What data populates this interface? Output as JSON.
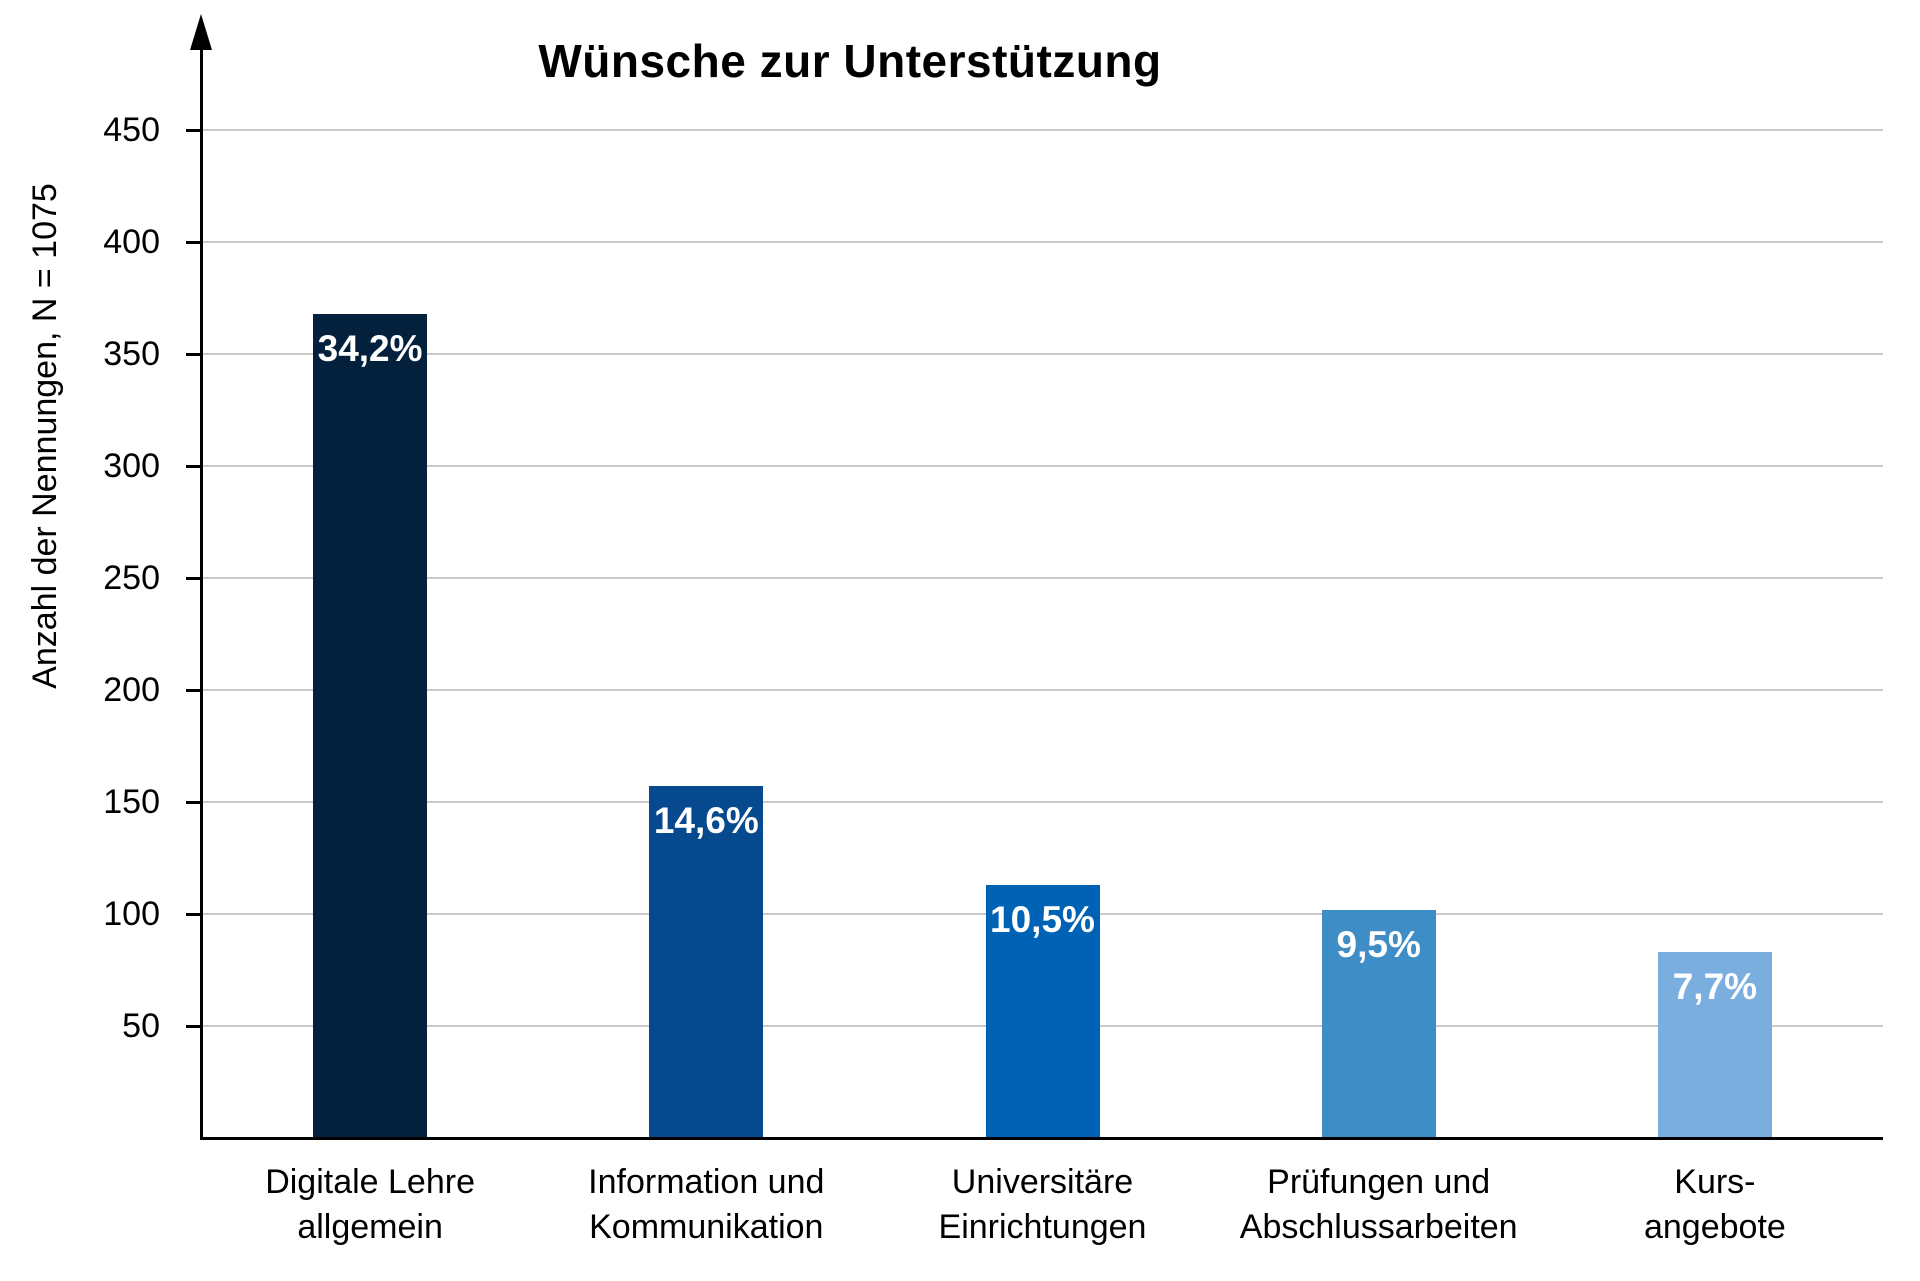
{
  "chart_data": {
    "type": "bar",
    "title": "Wünsche zur Unterstützung",
    "ylabel": "Anzahl der Nennungen, N = 1075",
    "xlabel": "",
    "categories": [
      "Digitale Lehre\nallgemein",
      "Information und\nKommunikation",
      "Universitäre\nEinrichtungen",
      "Prüfungen und\nAbschlussarbeiten",
      "Kurs-\nangebote"
    ],
    "values": [
      368,
      157,
      113,
      102,
      83
    ],
    "bar_labels": [
      "34,2%",
      "14,6%",
      "10,5%",
      "9,5%",
      "7,7%"
    ],
    "bar_colors": [
      "#03203c",
      "#07498e",
      "#0062b4",
      "#3f8dc6",
      "#79aede"
    ],
    "value_label_color": "#ffffff",
    "ylim": [
      0,
      475
    ],
    "yticks": [
      50,
      100,
      150,
      200,
      250,
      300,
      350,
      400,
      450
    ],
    "grid": "horizontal",
    "gridline_color": "#c9c9c9",
    "legend": "none"
  }
}
